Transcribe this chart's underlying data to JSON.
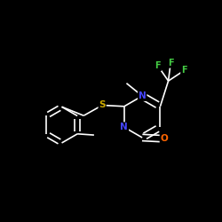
{
  "background_color": "#000000",
  "atom_colors": {
    "C": "#ffffff",
    "N": "#4444ff",
    "S": "#ccaa00",
    "O": "#ff6600",
    "F": "#44cc44"
  },
  "bond_color": "#ffffff",
  "figsize": [
    2.5,
    2.5
  ],
  "dpi": 100,
  "lw": 1.2
}
